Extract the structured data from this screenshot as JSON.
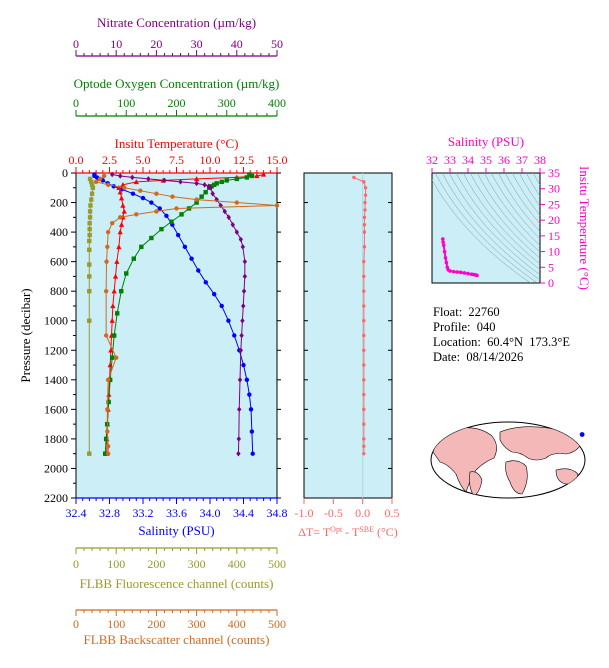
{
  "chart_data": [
    {
      "type": "scatter",
      "name": "main-profile",
      "x_axes": [
        {
          "id": "nitrate",
          "label": "Nitrate Concentration (µm/kg)",
          "range": [
            0,
            50
          ],
          "ticks": [
            "0",
            "10",
            "20",
            "30",
            "40",
            "50"
          ],
          "color": "#800080"
        },
        {
          "id": "oxygen",
          "label": "Optode Oxygen Concentration (µm/kg)",
          "range": [
            0,
            400
          ],
          "ticks": [
            "0",
            "100",
            "200",
            "300",
            "400"
          ],
          "color": "#008000"
        },
        {
          "id": "temperature",
          "label": "Insitu Temperature (°C)",
          "range": [
            0,
            15
          ],
          "ticks": [
            "0.0",
            "2.5",
            "5.0",
            "7.5",
            "10.0",
            "12.5",
            "15.0"
          ],
          "color": "#ff0000"
        },
        {
          "id": "salinity",
          "label": "Salinity (PSU)",
          "range": [
            32.4,
            34.8
          ],
          "ticks": [
            "32.4",
            "32.8",
            "33.2",
            "33.6",
            "34.0",
            "34.4",
            "34.8"
          ],
          "color": "#0000ff"
        },
        {
          "id": "fluorescence",
          "label": "FLBB Fluorescence channel (counts)",
          "range": [
            0,
            500
          ],
          "ticks": [
            "0",
            "100",
            "200",
            "300",
            "400",
            "500"
          ],
          "color": "#9a9a2a"
        },
        {
          "id": "backscatter",
          "label": "FLBB Backscatter channel (counts)",
          "range": [
            0,
            500
          ],
          "ticks": [
            "0",
            "100",
            "200",
            "300",
            "400",
            "500"
          ],
          "color": "#d2691e"
        }
      ],
      "y_axis": {
        "label": "Pressure (decibar)",
        "range": [
          0,
          2200
        ],
        "inverted": true,
        "ticks": [
          "0",
          "200",
          "400",
          "600",
          "800",
          "1000",
          "1200",
          "1400",
          "1600",
          "1800",
          "2000",
          "2200"
        ]
      },
      "series": [
        {
          "axis": "salinity",
          "marker": "circle",
          "x": [
            32.62,
            32.62,
            32.65,
            32.68,
            32.72,
            32.78,
            32.85,
            32.95,
            33.08,
            33.2,
            33.3,
            33.4,
            33.48,
            33.55,
            33.62,
            33.7,
            33.78,
            33.86,
            33.95,
            34.05,
            34.14,
            34.22,
            34.29,
            34.35,
            34.4,
            34.44,
            34.47,
            34.49,
            34.5,
            34.51
          ],
          "y": [
            10,
            20,
            30,
            40,
            50,
            70,
            90,
            110,
            140,
            170,
            200,
            240,
            290,
            350,
            420,
            500,
            580,
            660,
            740,
            820,
            900,
            1000,
            1100,
            1200,
            1300,
            1400,
            1500,
            1600,
            1750,
            1900
          ]
        },
        {
          "axis": "temperature",
          "marker": "triangle",
          "x": [
            14.0,
            13.5,
            12.0,
            9.0,
            6.5,
            4.5,
            3.5,
            3.2,
            3.3,
            3.4,
            3.5,
            3.6,
            3.5,
            3.4,
            3.3,
            3.2,
            3.05,
            2.95,
            2.85,
            2.75,
            2.7,
            2.65,
            2.6,
            2.55,
            2.5,
            2.45,
            2.4,
            2.35,
            2.3,
            2.3
          ],
          "y": [
            10,
            20,
            30,
            40,
            50,
            60,
            80,
            100,
            130,
            170,
            220,
            260,
            300,
            350,
            400,
            500,
            600,
            700,
            800,
            900,
            1000,
            1100,
            1200,
            1300,
            1400,
            1500,
            1600,
            1700,
            1800,
            1900
          ]
        },
        {
          "axis": "oxygen",
          "marker": "square",
          "x": [
            345,
            350,
            340,
            320,
            300,
            290,
            280,
            275,
            270,
            265,
            258,
            250,
            240,
            225,
            210,
            190,
            170,
            150,
            130,
            115,
            100,
            90,
            82,
            76,
            72,
            68,
            65,
            62,
            60,
            58
          ],
          "y": [
            10,
            20,
            30,
            40,
            50,
            60,
            70,
            80,
            90,
            100,
            130,
            160,
            200,
            240,
            280,
            330,
            380,
            440,
            500,
            580,
            680,
            800,
            950,
            1100,
            1250,
            1400,
            1550,
            1700,
            1800,
            1900
          ]
        },
        {
          "axis": "nitrate",
          "marker": "diamond",
          "x": [
            9,
            11,
            14,
            18,
            22,
            26,
            30,
            32,
            33,
            33.5,
            34,
            35,
            36,
            37,
            38,
            39,
            40,
            41,
            41.5,
            42,
            42,
            41.8,
            41.6,
            41.4,
            41.2,
            41,
            40.8,
            40.6,
            40.5,
            40.4
          ],
          "y": [
            10,
            20,
            30,
            40,
            50,
            60,
            70,
            80,
            90,
            100,
            140,
            180,
            220,
            260,
            300,
            350,
            400,
            450,
            500,
            600,
            700,
            800,
            900,
            1000,
            1100,
            1200,
            1400,
            1600,
            1800,
            1900
          ]
        },
        {
          "axis": "fluorescence",
          "marker": "square",
          "x": [
            35,
            38,
            40,
            42,
            40,
            38,
            36,
            35,
            35,
            34,
            34,
            34,
            33,
            33,
            33,
            33,
            33,
            33,
            33
          ],
          "y": [
            40,
            60,
            80,
            100,
            140,
            180,
            220,
            260,
            300,
            340,
            380,
            420,
            460,
            520,
            620,
            700,
            800,
            1000,
            1900
          ]
        },
        {
          "axis": "backscatter",
          "marker": "circle",
          "x": [
            70,
            60,
            50,
            80,
            120,
            160,
            200,
            240,
            300,
            400,
            500,
            250,
            200,
            150,
            110,
            90,
            80,
            78,
            76,
            75,
            75,
            100,
            80,
            78,
            78,
            80,
            80
          ],
          "y": [
            20,
            40,
            60,
            80,
            100,
            120,
            140,
            160,
            180,
            200,
            220,
            240,
            260,
            280,
            300,
            340,
            400,
            500,
            600,
            800,
            1100,
            1250,
            1400,
            1600,
            1750,
            1850,
            1900
          ]
        }
      ]
    },
    {
      "type": "scatter",
      "name": "delta-t",
      "xlabel": "ΔT= T",
      "xlabel_sup1": "Opt",
      "xlabel_mid": " - T",
      "xlabel_sup2": "SBE",
      "xlabel_unit": " (°C)",
      "xlim": [
        -1.0,
        0.5
      ],
      "x_ticks": [
        "-1.0",
        "-0.5",
        "0.0",
        "0.5"
      ],
      "ylim": [
        0,
        2200
      ],
      "color": "#ff6666",
      "x": [
        -0.15,
        0.02,
        0.05,
        0.05,
        0.04,
        0.04,
        0.03,
        0.03,
        0.03,
        0.03,
        0.02,
        0.02,
        0.02,
        0.02,
        0.02,
        0.02,
        0.02,
        0.02,
        0.02,
        0.02,
        0.02,
        0.02,
        0.02,
        0.02,
        0.02
      ],
      "y": [
        30,
        60,
        100,
        150,
        200,
        250,
        300,
        350,
        400,
        500,
        600,
        700,
        800,
        900,
        1000,
        1100,
        1200,
        1300,
        1400,
        1500,
        1600,
        1700,
        1800,
        1850,
        1900
      ]
    },
    {
      "type": "scatter",
      "name": "ts-diagram",
      "xlabel": "Salinity (PSU)",
      "xlim": [
        32,
        38
      ],
      "x_ticks": [
        "32",
        "33",
        "34",
        "35",
        "36",
        "37",
        "38"
      ],
      "ylabel": "Insitu Temperature (°C)",
      "ylim": [
        0,
        35
      ],
      "y_ticks": [
        "0",
        "5",
        "10",
        "15",
        "20",
        "25",
        "30",
        "35"
      ],
      "color": "#ff00cc",
      "x": [
        32.6,
        32.62,
        32.65,
        32.7,
        32.75,
        32.8,
        32.85,
        32.9,
        33.0,
        33.2,
        33.4,
        33.6,
        33.8,
        34.0,
        34.2,
        34.3,
        34.4,
        34.45,
        34.5
      ],
      "y": [
        14,
        13,
        12,
        10,
        8,
        6.5,
        5,
        4.2,
        3.8,
        3.6,
        3.5,
        3.4,
        3.2,
        3.0,
        2.8,
        2.7,
        2.6,
        2.5,
        2.4
      ]
    }
  ],
  "float_info": {
    "float": "Float:  22760",
    "profile": "Profile:  040",
    "location": "Location:  60.4°N  173.3°E",
    "date": "Date:  08/14/2026"
  },
  "colors": {
    "panel_bg": "#cceef7",
    "nitrate": "#800080",
    "oxygen": "#008000",
    "temperature": "#ff0000",
    "salinity": "#0000ff",
    "fluorescence": "#9a9a2a",
    "backscatter": "#d2691e",
    "delta_t": "#ff6666",
    "ts": "#ff00cc",
    "map_ocean": "#ffffff",
    "map_land": "#f4b8b8"
  },
  "map": {
    "marker_lat": 60.4,
    "marker_lon": 173.3
  }
}
